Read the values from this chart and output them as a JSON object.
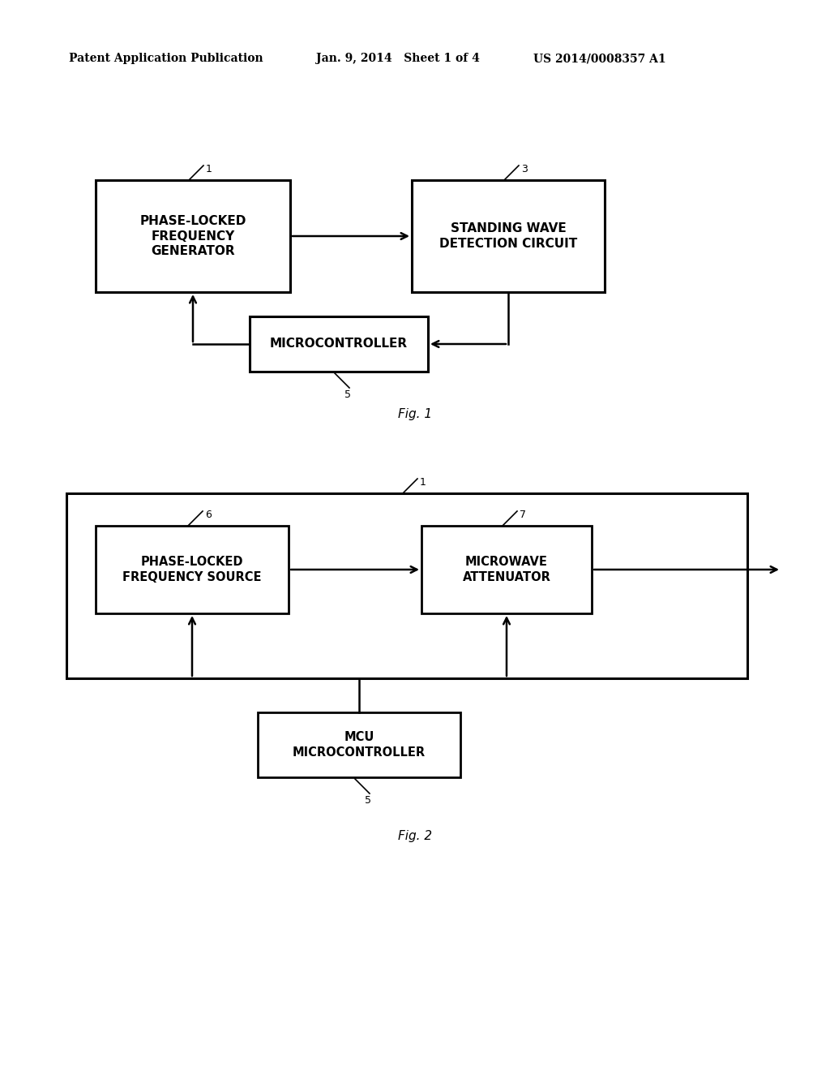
{
  "bg_color": "#ffffff",
  "header_left": "Patent Application Publication",
  "header_mid": "Jan. 9, 2014   Sheet 1 of 4",
  "header_right": "US 2014/0008357 A1",
  "fig1_caption": "Fig. 1",
  "fig2_caption": "Fig. 2",
  "fig1": {
    "box1_label": "PHASE-LOCKED\nFREQUENCY\nGENERATOR",
    "box1_num": "1",
    "box2_label": "STANDING WAVE\nDETECTION CIRCUIT",
    "box2_num": "3",
    "box3_label": "MICROCONTROLLER",
    "box3_num": "5"
  },
  "fig2": {
    "outer_num": "1",
    "box1_label": "PHASE-LOCKED\nFREQUENCY SOURCE",
    "box1_num": "6",
    "box2_label": "MICROWAVE\nATTENUATOR",
    "box2_num": "7",
    "box3_label": "MCU\nMICROCONTROLLER",
    "box3_num": "5"
  }
}
